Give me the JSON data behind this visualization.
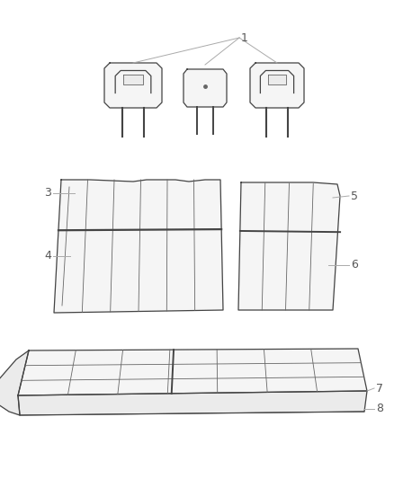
{
  "bg_color": "#ffffff",
  "line_color": "#666666",
  "line_color_dark": "#444444",
  "fill_light": "#f5f5f5",
  "fill_mid": "#ebebeb",
  "label_color": "#555555",
  "label_fontsize": 9,
  "figw": 4.38,
  "figh": 5.33,
  "dpi": 100
}
